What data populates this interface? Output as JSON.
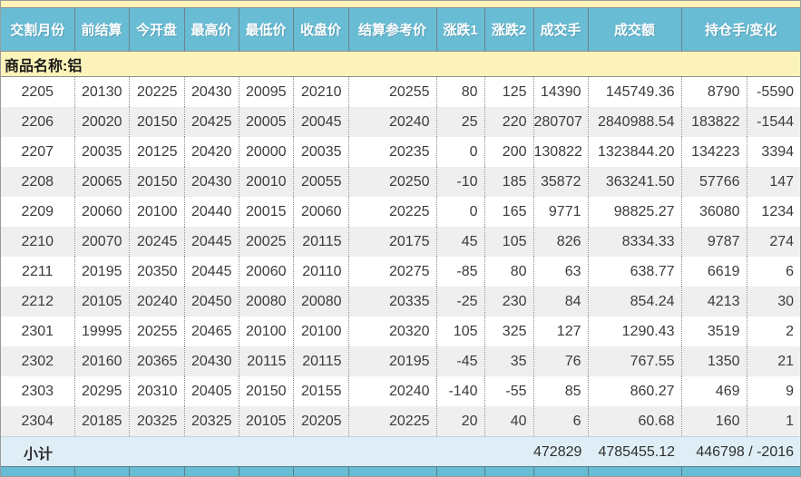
{
  "colors": {
    "header_bg": "#68bcd4",
    "commodity_band_bg": "#fbf3b9",
    "row_alt_bg": "#efefef",
    "subtotal_bg": "#dfeef6",
    "header_text": "#ffffff",
    "data_text": "#3b3b3b"
  },
  "table": {
    "columns": [
      "交割月份",
      "前结算",
      "今开盘",
      "最高价",
      "最低价",
      "收盘价",
      "结算参考价",
      "涨跌1",
      "涨跌2",
      "成交手",
      "成交额",
      "持仓手/变化"
    ],
    "commodity_label": "商品名称:铝",
    "rows": [
      [
        "2205",
        "20130",
        "20225",
        "20430",
        "20095",
        "20210",
        "20255",
        "80",
        "125",
        "14390",
        "145749.36",
        "8790",
        "-5590"
      ],
      [
        "2206",
        "20020",
        "20150",
        "20425",
        "20005",
        "20045",
        "20240",
        "25",
        "220",
        "280707",
        "2840988.54",
        "183822",
        "-1544"
      ],
      [
        "2207",
        "20035",
        "20125",
        "20420",
        "20000",
        "20035",
        "20235",
        "0",
        "200",
        "130822",
        "1323844.20",
        "134223",
        "3394"
      ],
      [
        "2208",
        "20065",
        "20150",
        "20430",
        "20010",
        "20055",
        "20250",
        "-10",
        "185",
        "35872",
        "363241.50",
        "57766",
        "147"
      ],
      [
        "2209",
        "20060",
        "20100",
        "20440",
        "20015",
        "20060",
        "20225",
        "0",
        "165",
        "9771",
        "98825.27",
        "36080",
        "1234"
      ],
      [
        "2210",
        "20070",
        "20245",
        "20445",
        "20025",
        "20115",
        "20175",
        "45",
        "105",
        "826",
        "8334.33",
        "9787",
        "274"
      ],
      [
        "2211",
        "20195",
        "20350",
        "20445",
        "20060",
        "20110",
        "20275",
        "-85",
        "80",
        "63",
        "638.77",
        "6619",
        "6"
      ],
      [
        "2212",
        "20105",
        "20240",
        "20450",
        "20080",
        "20080",
        "20335",
        "-25",
        "230",
        "84",
        "854.24",
        "4213",
        "30"
      ],
      [
        "2301",
        "19995",
        "20255",
        "20465",
        "20100",
        "20100",
        "20320",
        "105",
        "325",
        "127",
        "1290.43",
        "3519",
        "2"
      ],
      [
        "2302",
        "20160",
        "20365",
        "20430",
        "20115",
        "20115",
        "20195",
        "-45",
        "35",
        "76",
        "767.55",
        "1350",
        "21"
      ],
      [
        "2303",
        "20295",
        "20310",
        "20405",
        "20150",
        "20155",
        "20240",
        "-140",
        "-55",
        "85",
        "860.27",
        "469",
        "9"
      ],
      [
        "2304",
        "20185",
        "20325",
        "20325",
        "20105",
        "20205",
        "20225",
        "20",
        "40",
        "6",
        "60.68",
        "160",
        "1"
      ]
    ],
    "subtotal": {
      "label": "小计",
      "volume": "472829",
      "turnover": "4785455.12",
      "open_interest": "446798 / -2016"
    }
  }
}
